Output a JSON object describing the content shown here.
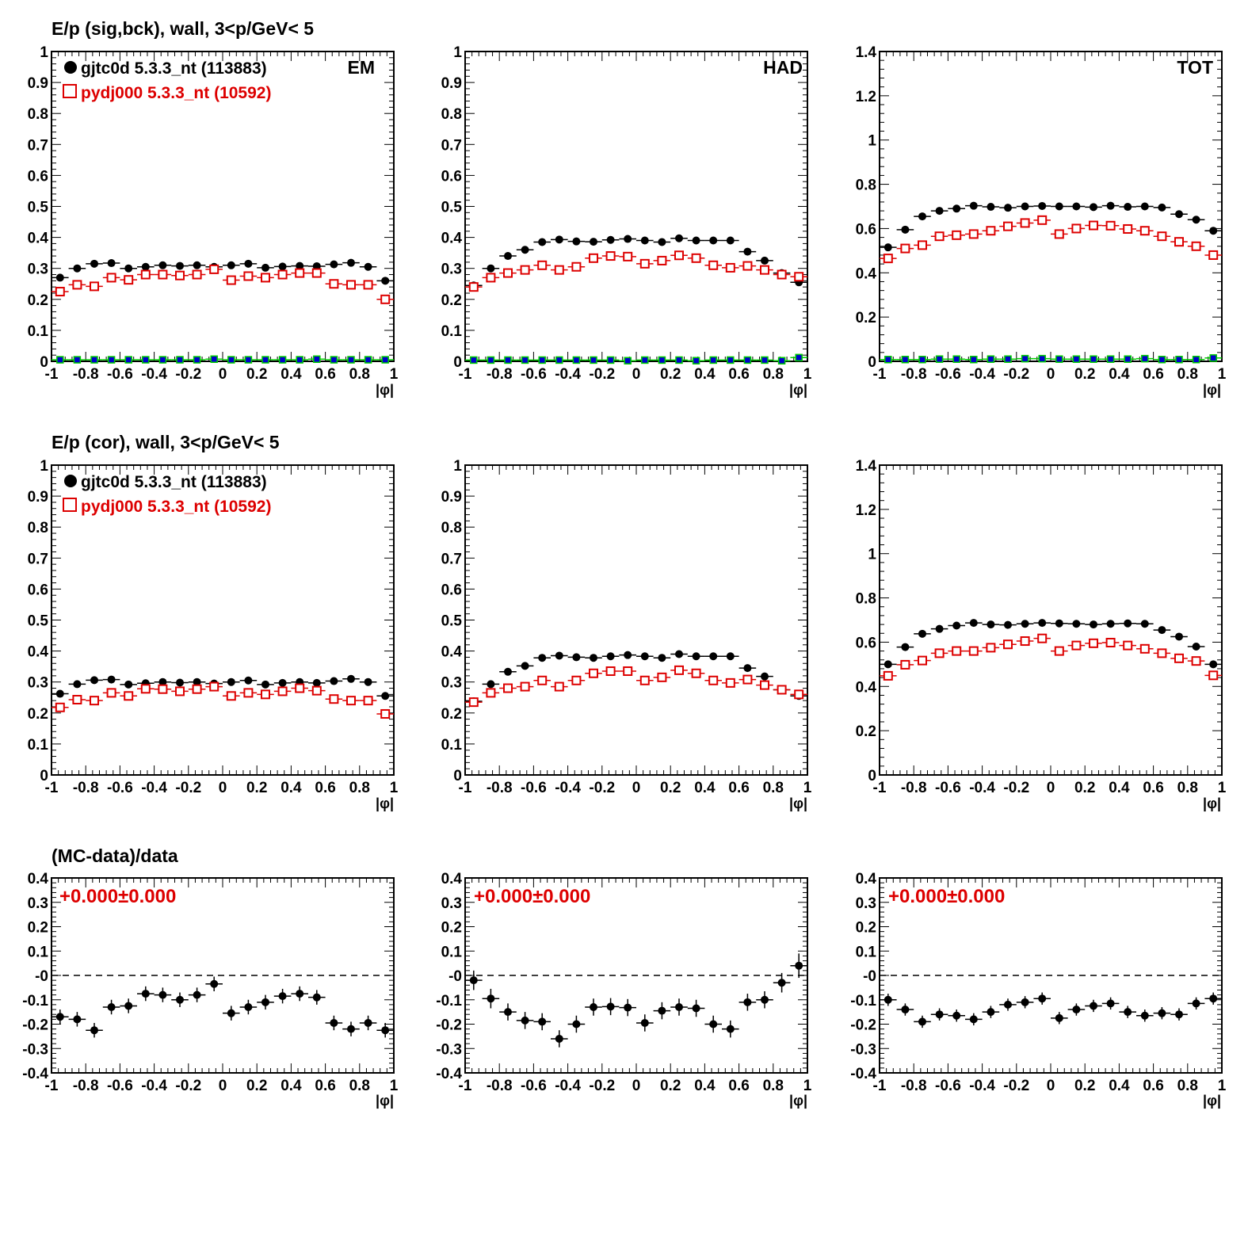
{
  "figure": {
    "row_titles": [
      "E/p (sig,bck), wall,  3<p/GeV< 5",
      "E/p (cor), wall,  3<p/GeV< 5",
      "(MC-data)/data"
    ],
    "legend": {
      "data_label": "gjtc0d 5.3.3_nt (113883)",
      "mc_label": "pydj000 5.3.3_nt (10592)"
    },
    "xlabel": "|φ|",
    "ratio_annotation": "+0.000±0.000",
    "colors": {
      "data": "#000000",
      "mc": "#dd0000",
      "background_fill": "#0000cc",
      "background_edge": "#00cc00",
      "axis": "#000000",
      "ratio_text": "#dd0000"
    }
  },
  "chart_data": [
    {
      "id": "p11",
      "type": "scatter",
      "panel_label": "EM",
      "xlim": [
        -1,
        1
      ],
      "ylim": [
        0,
        1
      ],
      "xticks": [
        "-1",
        "-0.8",
        "-0.6",
        "-0.4",
        "-0.2",
        "0",
        "0.2",
        "0.4",
        "0.6",
        "0.8",
        "1"
      ],
      "yticks": [
        "0",
        "0.1",
        "0.2",
        "0.3",
        "0.4",
        "0.5",
        "0.6",
        "0.7",
        "0.8",
        "0.9",
        "1"
      ],
      "x": [
        -0.95,
        -0.85,
        -0.75,
        -0.65,
        -0.55,
        -0.45,
        -0.35,
        -0.25,
        -0.15,
        -0.05,
        0.05,
        0.15,
        0.25,
        0.35,
        0.45,
        0.55,
        0.65,
        0.75,
        0.85,
        0.95
      ],
      "series": [
        {
          "name": "gjtc0d 5.3.3_nt (113883)",
          "values": [
            0.27,
            0.3,
            0.315,
            0.317,
            0.3,
            0.305,
            0.31,
            0.308,
            0.31,
            0.305,
            0.31,
            0.315,
            0.302,
            0.306,
            0.308,
            0.307,
            0.313,
            0.318,
            0.305,
            0.26
          ]
        },
        {
          "name": "pydj000 5.3.3_nt (10592)",
          "values": [
            0.225,
            0.247,
            0.242,
            0.27,
            0.263,
            0.28,
            0.28,
            0.277,
            0.28,
            0.297,
            0.262,
            0.275,
            0.27,
            0.28,
            0.285,
            0.285,
            0.25,
            0.247,
            0.247,
            0.2
          ]
        },
        {
          "values": [
            0.005,
            0.005,
            0.005,
            0.005,
            0.005,
            0.005,
            0.005,
            0.005,
            0.005,
            0.007,
            0.005,
            0.005,
            0.005,
            0.005,
            0.005,
            0.007,
            0.005,
            0.005,
            0.005,
            0.005
          ]
        }
      ]
    },
    {
      "id": "p12",
      "type": "scatter",
      "panel_label": "HAD",
      "xlim": [
        -1,
        1
      ],
      "ylim": [
        0,
        1
      ],
      "xticks": [
        "-1",
        "-0.8",
        "-0.6",
        "-0.4",
        "-0.2",
        "0",
        "0.2",
        "0.4",
        "0.6",
        "0.8",
        "1"
      ],
      "yticks": [
        "0",
        "0.1",
        "0.2",
        "0.3",
        "0.4",
        "0.5",
        "0.6",
        "0.7",
        "0.8",
        "0.9",
        "1"
      ],
      "x": [
        -0.95,
        -0.85,
        -0.75,
        -0.65,
        -0.55,
        -0.45,
        -0.35,
        -0.25,
        -0.15,
        -0.05,
        0.05,
        0.15,
        0.25,
        0.35,
        0.45,
        0.55,
        0.65,
        0.75,
        0.85,
        0.95
      ],
      "series": [
        {
          "name": "gjtc0d 5.3.3_nt (113883)",
          "values": [
            0.245,
            0.3,
            0.34,
            0.36,
            0.385,
            0.393,
            0.387,
            0.386,
            0.392,
            0.395,
            0.39,
            0.385,
            0.397,
            0.39,
            0.39,
            0.39,
            0.354,
            0.325,
            0.285,
            0.255
          ]
        },
        {
          "name": "pydj000 5.3.3_nt (10592)",
          "values": [
            0.24,
            0.27,
            0.285,
            0.295,
            0.31,
            0.295,
            0.305,
            0.333,
            0.34,
            0.338,
            0.315,
            0.325,
            0.342,
            0.333,
            0.31,
            0.302,
            0.308,
            0.295,
            0.28,
            0.273
          ]
        },
        {
          "values": [
            0.004,
            0.004,
            0.004,
            0.004,
            0.004,
            0.004,
            0.004,
            0.004,
            0.004,
            0.002,
            0.004,
            0.004,
            0.004,
            0.002,
            0.004,
            0.004,
            0.004,
            0.004,
            0.002,
            0.012
          ]
        }
      ]
    },
    {
      "id": "p13",
      "type": "scatter",
      "panel_label": "TOT",
      "xlim": [
        -1,
        1
      ],
      "ylim": [
        0,
        1.4
      ],
      "xticks": [
        "-1",
        "-0.8",
        "-0.6",
        "-0.4",
        "-0.2",
        "0",
        "0.2",
        "0.4",
        "0.6",
        "0.8",
        "1"
      ],
      "yticks": [
        "0",
        "0.2",
        "0.4",
        "0.6",
        "0.8",
        "1",
        "1.2",
        "1.4"
      ],
      "x": [
        -0.95,
        -0.85,
        -0.75,
        -0.65,
        -0.55,
        -0.45,
        -0.35,
        -0.25,
        -0.15,
        -0.05,
        0.05,
        0.15,
        0.25,
        0.35,
        0.45,
        0.55,
        0.65,
        0.75,
        0.85,
        0.95
      ],
      "series": [
        {
          "name": "gjtc0d 5.3.3_nt (113883)",
          "values": [
            0.515,
            0.595,
            0.655,
            0.68,
            0.69,
            0.703,
            0.698,
            0.694,
            0.7,
            0.702,
            0.7,
            0.7,
            0.697,
            0.703,
            0.698,
            0.7,
            0.695,
            0.665,
            0.64,
            0.59
          ]
        },
        {
          "name": "pydj000 5.3.3_nt (10592)",
          "values": [
            0.465,
            0.51,
            0.525,
            0.565,
            0.57,
            0.575,
            0.59,
            0.61,
            0.625,
            0.638,
            0.575,
            0.6,
            0.614,
            0.613,
            0.598,
            0.59,
            0.565,
            0.54,
            0.52,
            0.48
          ]
        },
        {
          "values": [
            0.008,
            0.008,
            0.008,
            0.01,
            0.01,
            0.008,
            0.01,
            0.01,
            0.012,
            0.012,
            0.01,
            0.01,
            0.01,
            0.01,
            0.01,
            0.012,
            0.008,
            0.008,
            0.008,
            0.015
          ]
        }
      ]
    },
    {
      "id": "p21",
      "type": "scatter",
      "xlim": [
        -1,
        1
      ],
      "ylim": [
        0,
        1
      ],
      "xticks": [
        "-1",
        "-0.8",
        "-0.6",
        "-0.4",
        "-0.2",
        "0",
        "0.2",
        "0.4",
        "0.6",
        "0.8",
        "1"
      ],
      "yticks": [
        "0",
        "0.1",
        "0.2",
        "0.3",
        "0.4",
        "0.5",
        "0.6",
        "0.7",
        "0.8",
        "0.9",
        "1"
      ],
      "x": [
        -0.95,
        -0.85,
        -0.75,
        -0.65,
        -0.55,
        -0.45,
        -0.35,
        -0.25,
        -0.15,
        -0.05,
        0.05,
        0.15,
        0.25,
        0.35,
        0.45,
        0.55,
        0.65,
        0.75,
        0.85,
        0.95
      ],
      "series": [
        {
          "name": "gjtc0d 5.3.3_nt (113883)",
          "values": [
            0.262,
            0.293,
            0.306,
            0.308,
            0.292,
            0.296,
            0.3,
            0.298,
            0.3,
            0.295,
            0.3,
            0.305,
            0.292,
            0.297,
            0.3,
            0.297,
            0.303,
            0.31,
            0.3,
            0.255
          ]
        },
        {
          "name": "pydj000 5.3.3_nt (10592)",
          "values": [
            0.218,
            0.243,
            0.24,
            0.265,
            0.255,
            0.278,
            0.277,
            0.27,
            0.277,
            0.285,
            0.255,
            0.265,
            0.26,
            0.27,
            0.28,
            0.272,
            0.245,
            0.24,
            0.24,
            0.197
          ]
        }
      ]
    },
    {
      "id": "p22",
      "type": "scatter",
      "xlim": [
        -1,
        1
      ],
      "ylim": [
        0,
        1
      ],
      "xticks": [
        "-1",
        "-0.8",
        "-0.6",
        "-0.4",
        "-0.2",
        "0",
        "0.2",
        "0.4",
        "0.6",
        "0.8",
        "1"
      ],
      "yticks": [
        "0",
        "0.1",
        "0.2",
        "0.3",
        "0.4",
        "0.5",
        "0.6",
        "0.7",
        "0.8",
        "0.9",
        "1"
      ],
      "x": [
        -0.95,
        -0.85,
        -0.75,
        -0.65,
        -0.55,
        -0.45,
        -0.35,
        -0.25,
        -0.15,
        -0.05,
        0.05,
        0.15,
        0.25,
        0.35,
        0.45,
        0.55,
        0.65,
        0.75,
        0.85,
        0.95
      ],
      "series": [
        {
          "name": "gjtc0d 5.3.3_nt (113883)",
          "values": [
            0.238,
            0.293,
            0.333,
            0.352,
            0.378,
            0.385,
            0.38,
            0.378,
            0.383,
            0.387,
            0.383,
            0.378,
            0.39,
            0.383,
            0.383,
            0.383,
            0.345,
            0.318,
            0.275,
            0.255
          ]
        },
        {
          "name": "pydj000 5.3.3_nt (10592)",
          "values": [
            0.235,
            0.265,
            0.28,
            0.285,
            0.305,
            0.285,
            0.305,
            0.328,
            0.335,
            0.335,
            0.305,
            0.315,
            0.338,
            0.328,
            0.305,
            0.297,
            0.308,
            0.29,
            0.275,
            0.26
          ]
        }
      ]
    },
    {
      "id": "p23",
      "type": "scatter",
      "xlim": [
        -1,
        1
      ],
      "ylim": [
        0,
        1.4
      ],
      "xticks": [
        "-1",
        "-0.8",
        "-0.6",
        "-0.4",
        "-0.2",
        "0",
        "0.2",
        "0.4",
        "0.6",
        "0.8",
        "1"
      ],
      "yticks": [
        "0",
        "0.2",
        "0.4",
        "0.6",
        "0.8",
        "1",
        "1.2",
        "1.4"
      ],
      "x": [
        -0.95,
        -0.85,
        -0.75,
        -0.65,
        -0.55,
        -0.45,
        -0.35,
        -0.25,
        -0.15,
        -0.05,
        0.05,
        0.15,
        0.25,
        0.35,
        0.45,
        0.55,
        0.65,
        0.75,
        0.85,
        0.95
      ],
      "series": [
        {
          "name": "gjtc0d 5.3.3_nt (113883)",
          "values": [
            0.5,
            0.578,
            0.638,
            0.66,
            0.675,
            0.687,
            0.68,
            0.678,
            0.683,
            0.687,
            0.685,
            0.683,
            0.68,
            0.683,
            0.685,
            0.683,
            0.655,
            0.625,
            0.58,
            0.5
          ]
        },
        {
          "name": "pydj000 5.3.3_nt (10592)",
          "values": [
            0.448,
            0.498,
            0.517,
            0.55,
            0.56,
            0.56,
            0.575,
            0.59,
            0.605,
            0.617,
            0.56,
            0.585,
            0.595,
            0.598,
            0.585,
            0.57,
            0.55,
            0.527,
            0.515,
            0.45
          ]
        }
      ]
    },
    {
      "id": "p31",
      "type": "scatter",
      "xlim": [
        -1,
        1
      ],
      "ylim": [
        -0.4,
        0.4
      ],
      "xticks": [
        "-1",
        "-0.8",
        "-0.6",
        "-0.4",
        "-0.2",
        "0",
        "0.2",
        "0.4",
        "0.6",
        "0.8",
        "1"
      ],
      "yticks": [
        "-0.4",
        "-0.3",
        "-0.2",
        "-0.1",
        "-0",
        "0.1",
        "0.2",
        "0.3",
        "0.4"
      ],
      "x": [
        -0.95,
        -0.85,
        -0.75,
        -0.65,
        -0.55,
        -0.45,
        -0.35,
        -0.25,
        -0.15,
        -0.05,
        0.05,
        0.15,
        0.25,
        0.35,
        0.45,
        0.55,
        0.65,
        0.75,
        0.85,
        0.95
      ],
      "series": [
        {
          "values": [
            -0.17,
            -0.18,
            -0.225,
            -0.13,
            -0.125,
            -0.075,
            -0.08,
            -0.1,
            -0.08,
            -0.035,
            -0.155,
            -0.13,
            -0.11,
            -0.085,
            -0.075,
            -0.09,
            -0.195,
            -0.22,
            -0.195,
            -0.225
          ],
          "errors": [
            0.03,
            0.03,
            0.03,
            0.03,
            0.03,
            0.03,
            0.03,
            0.03,
            0.03,
            0.03,
            0.03,
            0.03,
            0.03,
            0.03,
            0.03,
            0.03,
            0.03,
            0.03,
            0.03,
            0.03
          ]
        }
      ],
      "hline": 0
    },
    {
      "id": "p32",
      "type": "scatter",
      "xlim": [
        -1,
        1
      ],
      "ylim": [
        -0.4,
        0.4
      ],
      "xticks": [
        "-1",
        "-0.8",
        "-0.6",
        "-0.4",
        "-0.2",
        "0",
        "0.2",
        "0.4",
        "0.6",
        "0.8",
        "1"
      ],
      "yticks": [
        "-0.4",
        "-0.3",
        "-0.2",
        "-0.1",
        "-0",
        "0.1",
        "0.2",
        "0.3",
        "0.4"
      ],
      "x": [
        -0.95,
        -0.85,
        -0.75,
        -0.65,
        -0.55,
        -0.45,
        -0.35,
        -0.25,
        -0.15,
        -0.05,
        0.05,
        0.15,
        0.25,
        0.35,
        0.45,
        0.55,
        0.65,
        0.75,
        0.85,
        0.95
      ],
      "series": [
        {
          "values": [
            -0.02,
            -0.095,
            -0.15,
            -0.185,
            -0.19,
            -0.26,
            -0.2,
            -0.13,
            -0.128,
            -0.132,
            -0.195,
            -0.145,
            -0.13,
            -0.135,
            -0.2,
            -0.22,
            -0.11,
            -0.1,
            -0.03,
            0.04
          ],
          "errors": [
            0.04,
            0.04,
            0.035,
            0.035,
            0.035,
            0.035,
            0.035,
            0.035,
            0.035,
            0.035,
            0.035,
            0.035,
            0.035,
            0.035,
            0.035,
            0.035,
            0.035,
            0.035,
            0.04,
            0.05
          ]
        }
      ],
      "hline": 0
    },
    {
      "id": "p33",
      "type": "scatter",
      "xlim": [
        -1,
        1
      ],
      "ylim": [
        -0.4,
        0.4
      ],
      "xticks": [
        "-1",
        "-0.8",
        "-0.6",
        "-0.4",
        "-0.2",
        "0",
        "0.2",
        "0.4",
        "0.6",
        "0.8",
        "1"
      ],
      "yticks": [
        "-0.4",
        "-0.3",
        "-0.2",
        "-0.1",
        "-0",
        "0.1",
        "0.2",
        "0.3",
        "0.4"
      ],
      "x": [
        -0.95,
        -0.85,
        -0.75,
        -0.65,
        -0.55,
        -0.45,
        -0.35,
        -0.25,
        -0.15,
        -0.05,
        0.05,
        0.15,
        0.25,
        0.35,
        0.45,
        0.55,
        0.65,
        0.75,
        0.85,
        0.95
      ],
      "series": [
        {
          "values": [
            -0.1,
            -0.14,
            -0.19,
            -0.16,
            -0.165,
            -0.18,
            -0.15,
            -0.12,
            -0.11,
            -0.095,
            -0.175,
            -0.14,
            -0.125,
            -0.115,
            -0.15,
            -0.165,
            -0.155,
            -0.16,
            -0.115,
            -0.095
          ],
          "errors": [
            0.025,
            0.025,
            0.025,
            0.025,
            0.025,
            0.025,
            0.025,
            0.025,
            0.025,
            0.025,
            0.025,
            0.025,
            0.025,
            0.025,
            0.025,
            0.025,
            0.025,
            0.025,
            0.025,
            0.025
          ]
        }
      ],
      "hline": 0
    }
  ]
}
